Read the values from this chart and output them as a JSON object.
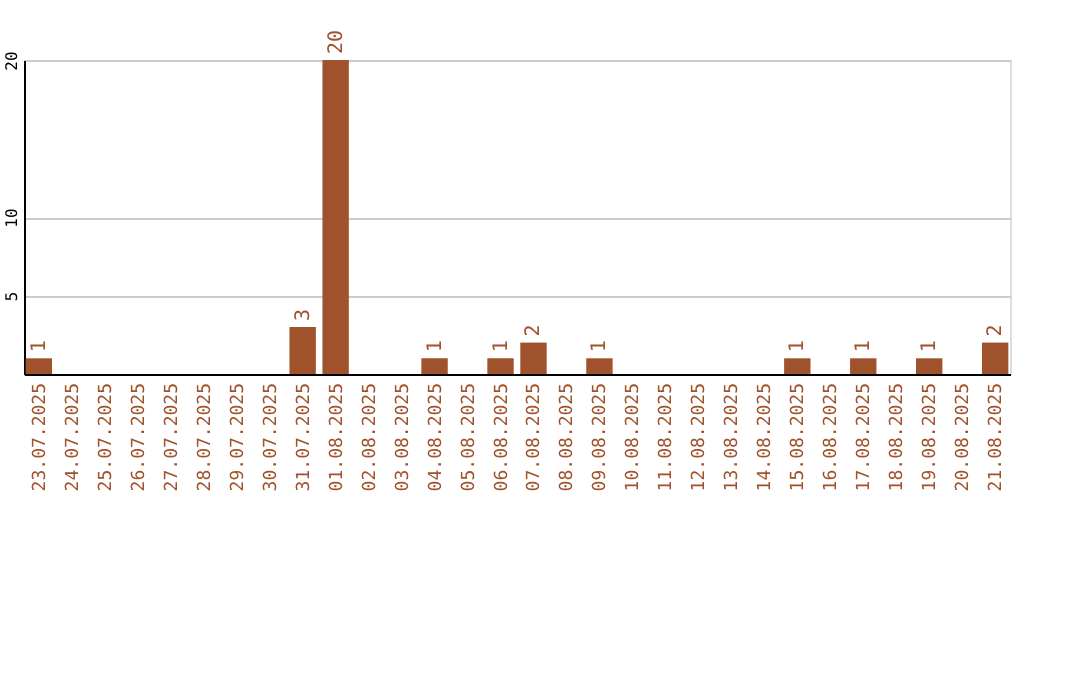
{
  "chart_data": {
    "type": "bar",
    "categories": [
      "23.07.2025",
      "24.07.2025",
      "25.07.2025",
      "26.07.2025",
      "27.07.2025",
      "28.07.2025",
      "29.07.2025",
      "30.07.2025",
      "31.07.2025",
      "01.08.2025",
      "02.08.2025",
      "03.08.2025",
      "04.08.2025",
      "05.08.2025",
      "06.08.2025",
      "07.08.2025",
      "08.08.2025",
      "09.08.2025",
      "10.08.2025",
      "11.08.2025",
      "12.08.2025",
      "13.08.2025",
      "14.08.2025",
      "15.08.2025",
      "16.08.2025",
      "17.08.2025",
      "18.08.2025",
      "19.08.2025",
      "20.08.2025",
      "21.08.2025"
    ],
    "values": [
      1,
      0,
      0,
      0,
      0,
      0,
      0,
      0,
      3,
      20,
      0,
      0,
      1,
      0,
      1,
      2,
      0,
      1,
      0,
      0,
      0,
      0,
      0,
      1,
      0,
      1,
      0,
      1,
      0,
      2
    ],
    "value_labels": [
      "1",
      null,
      null,
      null,
      null,
      null,
      null,
      null,
      "3",
      "20",
      null,
      null,
      "1",
      null,
      "1",
      "2",
      null,
      "1",
      null,
      null,
      null,
      null,
      null,
      "1",
      null,
      "1",
      null,
      "1",
      null,
      "2"
    ],
    "color": "#a0522d",
    "ylim": [
      0,
      20
    ],
    "yticks": [
      5,
      10,
      20
    ],
    "grid": "y"
  }
}
